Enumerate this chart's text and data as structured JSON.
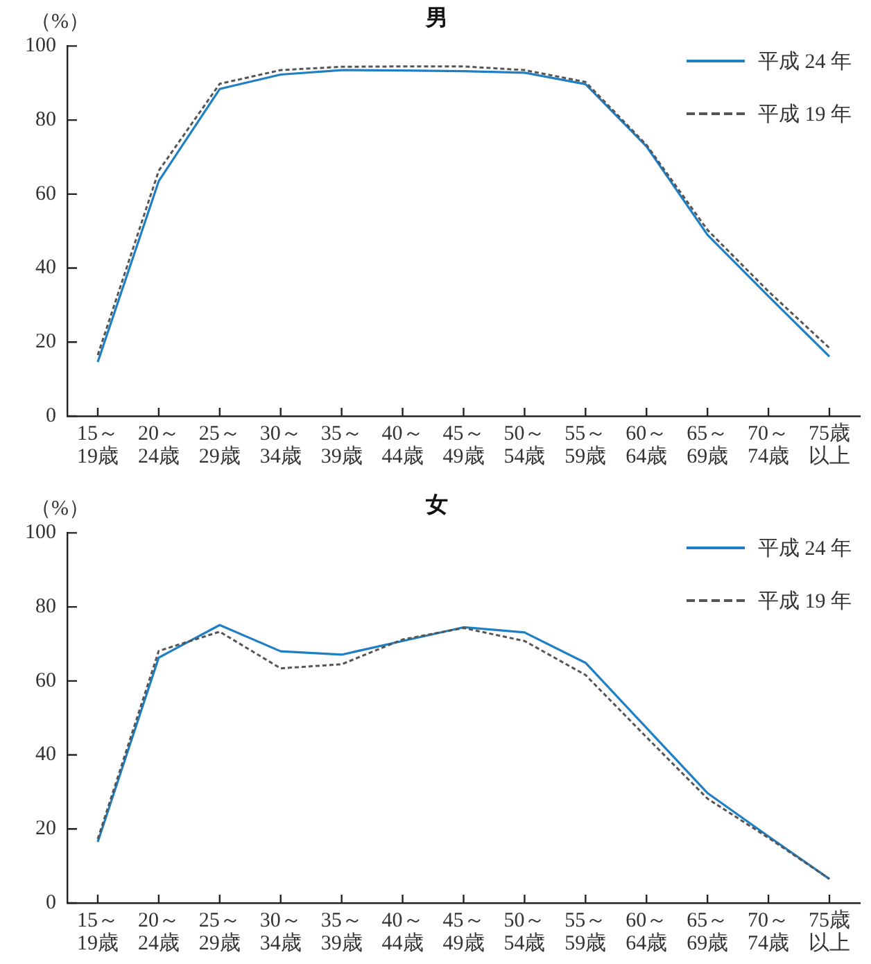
{
  "chart_data": [
    {
      "type": "line",
      "title": "男",
      "ylabel": "（%）",
      "categories": [
        "15～\n19歳",
        "20～\n24歳",
        "25～\n29歳",
        "30～\n34歳",
        "35～\n39歳",
        "40～\n44歳",
        "45～\n49歳",
        "50～\n54歳",
        "55～\n59歳",
        "60～\n64歳",
        "65～\n69歳",
        "70～\n74歳",
        "75歳以上"
      ],
      "series": [
        {
          "name": "平成 24 年",
          "color": "#1f7fc4",
          "line_style": "solid",
          "values": [
            14.6,
            63.5,
            88.4,
            92.3,
            93.5,
            93.4,
            93.2,
            92.8,
            89.7,
            72.9,
            49.0,
            32.4,
            16.1
          ]
        },
        {
          "name": "平成 19 年",
          "color": "#555555",
          "line_style": "dashed",
          "values": [
            16.5,
            66.3,
            89.8,
            93.5,
            94.4,
            94.5,
            94.5,
            93.5,
            90.3,
            73.3,
            50.3,
            33.7,
            18.4
          ]
        }
      ],
      "ylim": [
        0,
        100
      ],
      "yticks": [
        0,
        20,
        40,
        60,
        80,
        100
      ],
      "grid": false,
      "legend": "top right",
      "marker": "none"
    },
    {
      "type": "line",
      "title": "女",
      "ylabel": "（%）",
      "categories": [
        "15～\n19歳",
        "20～\n24歳",
        "25～\n29歳",
        "30～\n34歳",
        "35～\n39歳",
        "40～\n44歳",
        "45～\n49歳",
        "50～\n54歳",
        "55～\n59歳",
        "60～\n64歳",
        "65～\n69歳",
        "70～\n74歳",
        "75歳以上"
      ],
      "series": [
        {
          "name": "平成 24 年",
          "color": "#1f7fc4",
          "line_style": "solid",
          "values": [
            16.5,
            66.3,
            75.1,
            68.0,
            67.1,
            70.8,
            74.5,
            73.1,
            64.9,
            47.3,
            29.7,
            18.0,
            6.5
          ]
        },
        {
          "name": "平成 19 年",
          "color": "#555555",
          "line_style": "dashed",
          "values": [
            17.3,
            68.1,
            73.3,
            63.4,
            64.5,
            71.2,
            74.3,
            70.8,
            61.6,
            44.8,
            28.2,
            17.6,
            6.5
          ]
        }
      ],
      "ylim": [
        0,
        100
      ],
      "yticks": [
        0,
        20,
        40,
        60,
        80,
        100
      ],
      "grid": false,
      "legend": "top right",
      "marker": "none"
    }
  ]
}
